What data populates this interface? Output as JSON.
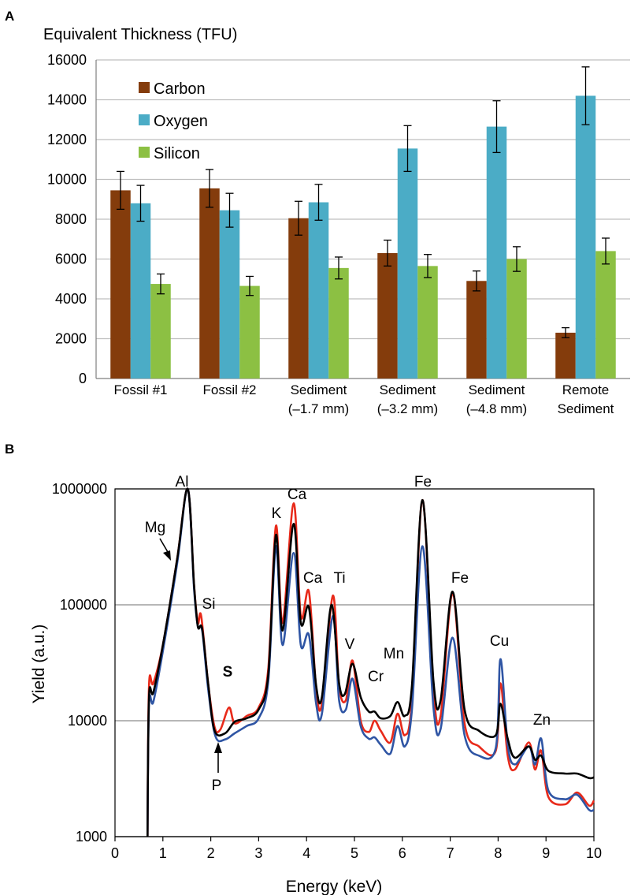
{
  "panels": [
    {
      "letter": "A"
    },
    {
      "letter": "B"
    }
  ],
  "chart_data": [
    {
      "type": "bar",
      "title": "Equivalent Thickness (TFU)",
      "ylim": [
        0,
        16000
      ],
      "yticks": [
        0,
        2000,
        4000,
        6000,
        8000,
        10000,
        12000,
        14000,
        16000
      ],
      "grid": true,
      "legend": "top-left",
      "categories": [
        [
          "Fossil #1"
        ],
        [
          "Fossil #2"
        ],
        [
          "Sediment",
          "(–1.7 mm)"
        ],
        [
          "Sediment",
          "(–3.2 mm)"
        ],
        [
          "Sediment",
          "(–4.8 mm)"
        ],
        [
          "Remote",
          "Sediment"
        ]
      ],
      "series": [
        {
          "name": "Carbon",
          "color": "#843c0c",
          "values": [
            9450,
            9550,
            8050,
            6300,
            4900,
            2300
          ],
          "errors": [
            950,
            950,
            850,
            650,
            500,
            250
          ]
        },
        {
          "name": "Oxygen",
          "color": "#4bacc6",
          "values": [
            8800,
            8450,
            8850,
            11550,
            12650,
            14200
          ],
          "errors": [
            900,
            850,
            900,
            1150,
            1300,
            1450
          ]
        },
        {
          "name": "Silicon",
          "color": "#8cc043",
          "values": [
            4750,
            4650,
            5550,
            5650,
            6000,
            6400
          ],
          "errors": [
            500,
            480,
            550,
            580,
            620,
            650
          ]
        }
      ]
    },
    {
      "type": "line",
      "xlabel": "Energy (keV)",
      "ylabel": "Yield (a.u.)",
      "yscale": "log",
      "xlim": [
        0,
        10
      ],
      "ylim": [
        1000,
        1000000
      ],
      "xticks": [
        0,
        1,
        2,
        3,
        4,
        5,
        6,
        7,
        8,
        9,
        10
      ],
      "yticks": [
        1000,
        10000,
        100000,
        1000000
      ],
      "grid": "horizontal",
      "series": [
        {
          "color": "#000000",
          "peaks": [
            [
              1.0,
              45000
            ],
            [
              1.25,
              240000
            ],
            [
              1.5,
              1000000
            ],
            [
              1.78,
              70000
            ],
            [
              2.38,
              9000
            ],
            [
              3.35,
              400000
            ],
            [
              3.72,
              500000
            ],
            [
              4.05,
              95000
            ],
            [
              4.52,
              100000
            ],
            [
              4.95,
              31000
            ],
            [
              5.42,
              12000
            ],
            [
              5.9,
              14500
            ],
            [
              6.42,
              800000
            ],
            [
              7.05,
              130000
            ],
            [
              8.05,
              14000
            ],
            [
              8.64,
              6000
            ],
            [
              8.9,
              5000
            ],
            [
              9.65,
              3500
            ]
          ],
          "points": [
            [
              0.68,
              1000
            ],
            [
              0.71,
              16000
            ],
            [
              0.8,
              17500
            ],
            [
              1.0,
              45000
            ],
            [
              1.3,
              250000
            ],
            [
              1.52,
              1000000
            ],
            [
              1.65,
              150000
            ],
            [
              1.73,
              65000
            ],
            [
              1.82,
              62000
            ],
            [
              1.95,
              20000
            ],
            [
              2.08,
              8200
            ],
            [
              2.3,
              7800
            ],
            [
              2.5,
              9800
            ],
            [
              2.75,
              10500
            ],
            [
              3.0,
              12500
            ],
            [
              3.2,
              25000
            ],
            [
              3.36,
              400000
            ],
            [
              3.5,
              60000
            ],
            [
              3.73,
              500000
            ],
            [
              3.88,
              70000
            ],
            [
              4.05,
              95000
            ],
            [
              4.2,
              20000
            ],
            [
              4.32,
              16000
            ],
            [
              4.52,
              100000
            ],
            [
              4.68,
              21000
            ],
            [
              4.8,
              17000
            ],
            [
              4.96,
              31000
            ],
            [
              5.13,
              16000
            ],
            [
              5.3,
              12000
            ],
            [
              5.42,
              12000
            ],
            [
              5.55,
              10500
            ],
            [
              5.75,
              11000
            ],
            [
              5.9,
              14500
            ],
            [
              6.05,
              11000
            ],
            [
              6.2,
              20000
            ],
            [
              6.42,
              800000
            ],
            [
              6.65,
              22000
            ],
            [
              6.8,
              15000
            ],
            [
              7.05,
              130000
            ],
            [
              7.3,
              12500
            ],
            [
              7.6,
              8200
            ],
            [
              7.95,
              7500
            ],
            [
              8.05,
              14000
            ],
            [
              8.2,
              7000
            ],
            [
              8.35,
              4800
            ],
            [
              8.64,
              6000
            ],
            [
              8.77,
              4600
            ],
            [
              8.9,
              5000
            ],
            [
              9.05,
              3700
            ],
            [
              9.4,
              3500
            ],
            [
              9.65,
              3500
            ],
            [
              9.9,
              3200
            ],
            [
              10.0,
              3250
            ]
          ]
        },
        {
          "color": "#e82a1a",
          "points": [
            [
              0.68,
              1000
            ],
            [
              0.71,
              20000
            ],
            [
              0.8,
              21000
            ],
            [
              1.0,
              45000
            ],
            [
              1.3,
              250000
            ],
            [
              1.52,
              1000000
            ],
            [
              1.65,
              150000
            ],
            [
              1.73,
              70000
            ],
            [
              1.8,
              80000
            ],
            [
              1.95,
              20000
            ],
            [
              2.08,
              8800
            ],
            [
              2.2,
              8400
            ],
            [
              2.38,
              13000
            ],
            [
              2.5,
              9500
            ],
            [
              2.75,
              11000
            ],
            [
              3.0,
              13000
            ],
            [
              3.2,
              28000
            ],
            [
              3.36,
              480000
            ],
            [
              3.5,
              70000
            ],
            [
              3.73,
              750000
            ],
            [
              3.88,
              80000
            ],
            [
              4.05,
              130000
            ],
            [
              4.2,
              19000
            ],
            [
              4.32,
              14000
            ],
            [
              4.55,
              120000
            ],
            [
              4.68,
              20000
            ],
            [
              4.82,
              15000
            ],
            [
              4.96,
              33000
            ],
            [
              5.13,
              10000
            ],
            [
              5.3,
              8000
            ],
            [
              5.42,
              10000
            ],
            [
              5.55,
              8200
            ],
            [
              5.75,
              6500
            ],
            [
              5.9,
              11500
            ],
            [
              6.05,
              7500
            ],
            [
              6.2,
              15000
            ],
            [
              6.42,
              800000
            ],
            [
              6.65,
              18000
            ],
            [
              6.8,
              11000
            ],
            [
              7.05,
              125000
            ],
            [
              7.3,
              9500
            ],
            [
              7.6,
              6000
            ],
            [
              7.95,
              5500
            ],
            [
              8.05,
              21000
            ],
            [
              8.2,
              5000
            ],
            [
              8.35,
              3800
            ],
            [
              8.64,
              6500
            ],
            [
              8.77,
              3800
            ],
            [
              8.9,
              5500
            ],
            [
              9.05,
              2200
            ],
            [
              9.4,
              1900
            ],
            [
              9.65,
              2400
            ],
            [
              9.9,
              1850
            ],
            [
              10.0,
              2050
            ]
          ]
        },
        {
          "color": "#2f55a4",
          "points": [
            [
              0.68,
              1000
            ],
            [
              0.71,
              14000
            ],
            [
              0.8,
              14500
            ],
            [
              1.0,
              40000
            ],
            [
              1.3,
              230000
            ],
            [
              1.52,
              1000000
            ],
            [
              1.65,
              140000
            ],
            [
              1.73,
              65000
            ],
            [
              1.82,
              60000
            ],
            [
              1.95,
              18000
            ],
            [
              2.1,
              7300
            ],
            [
              2.3,
              6900
            ],
            [
              2.5,
              7800
            ],
            [
              2.75,
              9000
            ],
            [
              3.0,
              10500
            ],
            [
              3.2,
              22000
            ],
            [
              3.36,
              320000
            ],
            [
              3.5,
              45000
            ],
            [
              3.73,
              280000
            ],
            [
              3.88,
              45000
            ],
            [
              4.05,
              55000
            ],
            [
              4.2,
              14000
            ],
            [
              4.32,
              11500
            ],
            [
              4.55,
              80000
            ],
            [
              4.68,
              15000
            ],
            [
              4.82,
              12500
            ],
            [
              4.96,
              23000
            ],
            [
              5.13,
              9000
            ],
            [
              5.3,
              7000
            ],
            [
              5.42,
              7200
            ],
            [
              5.55,
              6200
            ],
            [
              5.75,
              5200
            ],
            [
              5.9,
              9000
            ],
            [
              6.05,
              6000
            ],
            [
              6.2,
              12500
            ],
            [
              6.42,
              320000
            ],
            [
              6.65,
              13000
            ],
            [
              6.8,
              8500
            ],
            [
              7.05,
              52000
            ],
            [
              7.3,
              7500
            ],
            [
              7.6,
              5000
            ],
            [
              7.95,
              5800
            ],
            [
              8.05,
              34000
            ],
            [
              8.2,
              6200
            ],
            [
              8.35,
              4200
            ],
            [
              8.64,
              6000
            ],
            [
              8.77,
              4200
            ],
            [
              8.9,
              7000
            ],
            [
              9.05,
              2500
            ],
            [
              9.4,
              2100
            ],
            [
              9.65,
              2300
            ],
            [
              9.9,
              1700
            ],
            [
              10.0,
              1700
            ]
          ]
        }
      ],
      "annotations": [
        {
          "text": "Al"
        },
        {
          "text": "Mg"
        },
        {
          "text": "Si"
        },
        {
          "text": "S"
        },
        {
          "text": "P"
        },
        {
          "text": "K"
        },
        {
          "text": "Ca"
        },
        {
          "text": "Ca"
        },
        {
          "text": "Ti"
        },
        {
          "text": "V"
        },
        {
          "text": "Cr"
        },
        {
          "text": "Mn"
        },
        {
          "text": "Fe"
        },
        {
          "text": "Fe"
        },
        {
          "text": "Cu"
        },
        {
          "text": "Zn"
        }
      ]
    }
  ]
}
